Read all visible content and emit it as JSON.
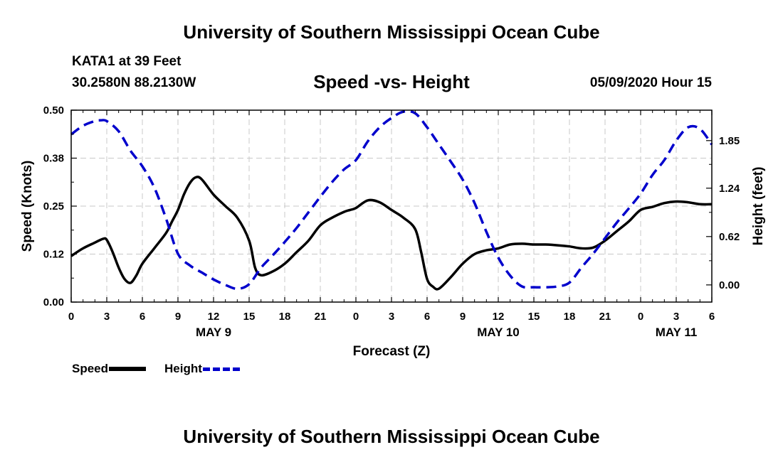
{
  "header": {
    "title": "University of Southern Mississippi Ocean Cube",
    "station": "KATA1 at 39 Feet",
    "coordinates": "30.2580N 88.2130W",
    "subtitle": "Speed -vs- Height",
    "date": "05/09/2020 Hour 15"
  },
  "footer": {
    "title": "University of Southern Mississippi Ocean Cube"
  },
  "legend": {
    "speed_label": "Speed",
    "height_label": "Height"
  },
  "colors": {
    "speed": "#000000",
    "height": "#0000cc",
    "grid": "#c8c8c8"
  },
  "chart_data": {
    "type": "line",
    "title": "Speed -vs- Height",
    "xlabel": "Forecast (Z)",
    "ylabel": "Speed (Knots)",
    "y2label": "Height (feet)",
    "xlim": [
      0,
      54
    ],
    "ylim": [
      0,
      0.5
    ],
    "y2lim": [
      -0.22,
      2.24
    ],
    "x_ticks": [
      0,
      3,
      6,
      9,
      12,
      15,
      18,
      21,
      24,
      27,
      30,
      33,
      36,
      39,
      42,
      45,
      48,
      51,
      54
    ],
    "x_tick_labels": [
      "0",
      "3",
      "6",
      "9",
      "12",
      "15",
      "18",
      "21",
      "0",
      "3",
      "6",
      "9",
      "12",
      "15",
      "18",
      "21",
      "0",
      "3",
      "6"
    ],
    "y_ticks": [
      0,
      0.125,
      0.25,
      0.375,
      0.5
    ],
    "y_tick_labels": [
      "0.00",
      "0.12",
      "0.25",
      "0.38",
      "0.50"
    ],
    "y2_ticks": [
      0,
      0.62,
      1.24,
      1.85
    ],
    "y2_tick_labels": [
      "0.00",
      "0.62",
      "1.24",
      "1.85"
    ],
    "day_labels": [
      {
        "x": 12,
        "label": "MAY 9"
      },
      {
        "x": 36,
        "label": "MAY 10"
      },
      {
        "x": 51,
        "label": "MAY 11"
      }
    ],
    "grid": true,
    "series": [
      {
        "name": "Speed",
        "axis": "left",
        "x": [
          0,
          1,
          2,
          2.7,
          3,
          3.5,
          4,
          4.5,
          5,
          5.5,
          6,
          7,
          8,
          8.5,
          9,
          9.5,
          10,
          10.5,
          11,
          12,
          13,
          14,
          15,
          15.5,
          16,
          17,
          18,
          19,
          20,
          21,
          22,
          23,
          23.5,
          24,
          25,
          26,
          27,
          28,
          29,
          29.5,
          30,
          30.5,
          31,
          32,
          33,
          34,
          35,
          36,
          37,
          38,
          39,
          40,
          41,
          42,
          43,
          44,
          45,
          46,
          47,
          48,
          49,
          50,
          51,
          52,
          53,
          54
        ],
        "values": [
          0.12,
          0.14,
          0.155,
          0.165,
          0.162,
          0.13,
          0.09,
          0.06,
          0.05,
          0.07,
          0.1,
          0.14,
          0.18,
          0.21,
          0.24,
          0.28,
          0.31,
          0.325,
          0.32,
          0.28,
          0.25,
          0.22,
          0.16,
          0.09,
          0.07,
          0.08,
          0.1,
          0.13,
          0.16,
          0.2,
          0.22,
          0.235,
          0.24,
          0.245,
          0.265,
          0.26,
          0.24,
          0.22,
          0.19,
          0.13,
          0.06,
          0.04,
          0.035,
          0.065,
          0.1,
          0.125,
          0.135,
          0.14,
          0.15,
          0.152,
          0.15,
          0.15,
          0.148,
          0.145,
          0.14,
          0.142,
          0.16,
          0.185,
          0.21,
          0.24,
          0.248,
          0.258,
          0.262,
          0.26,
          0.255,
          0.255
        ]
      },
      {
        "name": "Height",
        "axis": "right",
        "x": [
          0,
          1,
          2,
          2.5,
          3,
          4,
          5,
          6,
          7,
          8,
          9,
          10,
          11,
          12,
          13,
          14,
          15,
          16,
          17,
          18,
          19,
          20,
          21,
          22,
          23,
          24,
          25,
          26,
          27,
          28,
          29,
          30,
          31,
          32,
          33,
          34,
          35,
          36,
          37,
          38,
          39,
          40,
          41,
          42,
          43,
          44,
          45,
          46,
          47,
          48,
          49,
          50,
          51,
          52,
          53,
          54
        ],
        "values": [
          1.93,
          2.04,
          2.1,
          2.11,
          2.1,
          1.97,
          1.72,
          1.52,
          1.25,
          0.85,
          0.4,
          0.25,
          0.16,
          0.07,
          0.0,
          -0.05,
          0.01,
          0.22,
          0.38,
          0.55,
          0.73,
          0.93,
          1.13,
          1.32,
          1.48,
          1.6,
          1.84,
          2.02,
          2.14,
          2.22,
          2.2,
          2.02,
          1.8,
          1.58,
          1.35,
          1.05,
          0.68,
          0.35,
          0.12,
          -0.02,
          -0.03,
          -0.03,
          -0.02,
          0.03,
          0.22,
          0.4,
          0.6,
          0.8,
          0.98,
          1.17,
          1.41,
          1.6,
          1.85,
          2.02,
          2.0,
          1.8
        ]
      }
    ]
  }
}
